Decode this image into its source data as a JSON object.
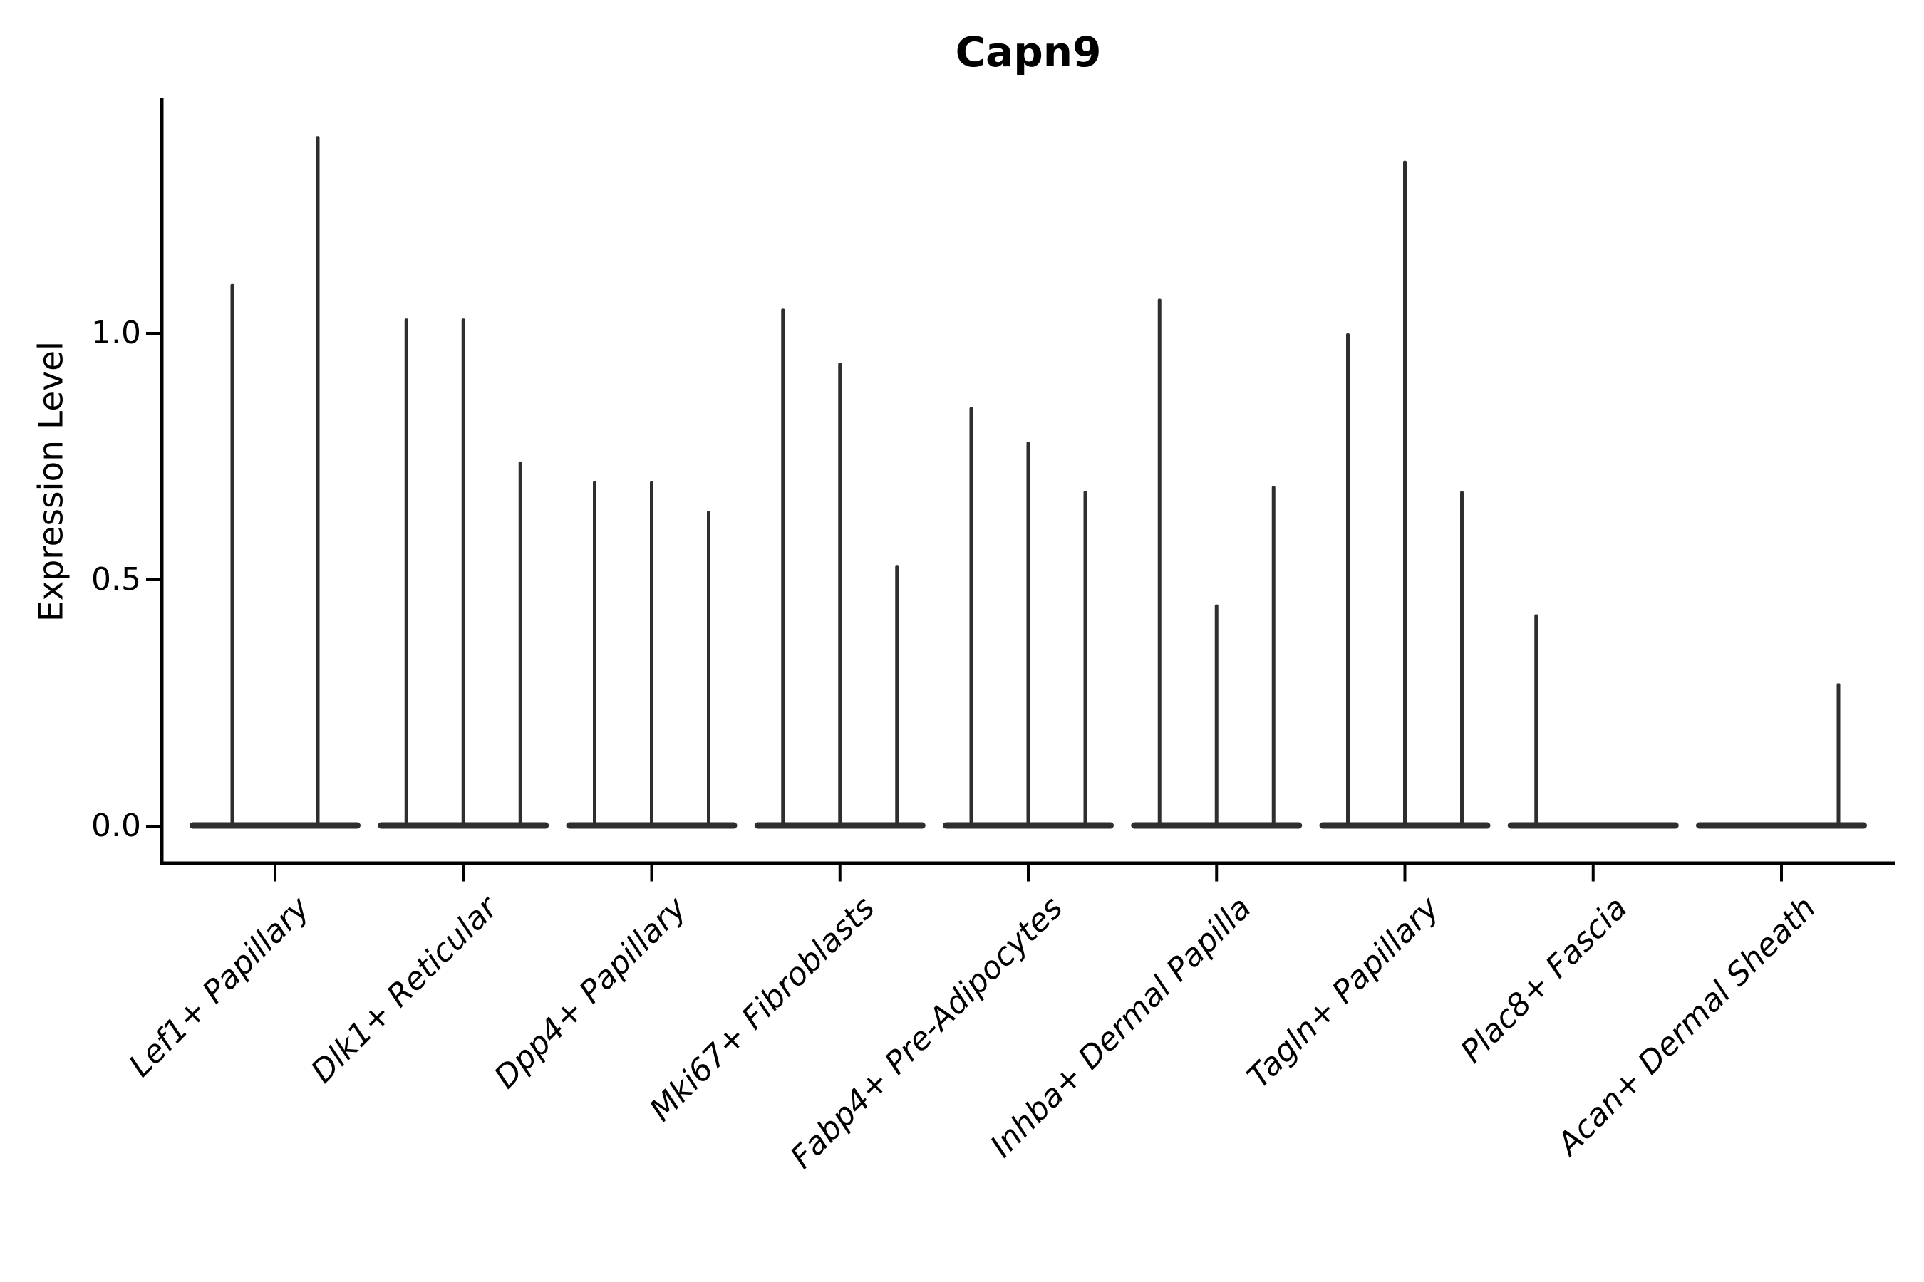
{
  "chart_data": {
    "type": "violin",
    "title": "Capn9",
    "xlabel": "",
    "ylabel": "Expression Level",
    "ylim": [
      -0.07,
      1.47
    ],
    "grid": false,
    "legend": null,
    "violin_color": "#2e2e2e",
    "axis_color": "#000000",
    "yticks": [
      {
        "label": "0.0",
        "value": 0.0
      },
      {
        "label": "0.5",
        "value": 0.5
      },
      {
        "label": "1.0",
        "value": 1.0
      }
    ],
    "categories": [
      {
        "label": "Lef1+ Papillary",
        "violin_peaks": [
          1.1,
          1.4
        ]
      },
      {
        "label": "Dlk1+ Reticular",
        "violin_peaks": [
          1.03,
          1.03,
          0.74
        ]
      },
      {
        "label": "Dpp4+ Papillary",
        "violin_peaks": [
          0.7,
          0.7,
          0.64
        ]
      },
      {
        "label": "Mki67+ Fibroblasts",
        "violin_peaks": [
          1.05,
          0.94,
          0.53
        ]
      },
      {
        "label": "Fabp4+ Pre-Adipocytes",
        "violin_peaks": [
          0.85,
          0.78,
          0.68
        ]
      },
      {
        "label": "Inhba+ Dermal Papilla",
        "violin_peaks": [
          1.07,
          0.45,
          0.69
        ]
      },
      {
        "label": "Tagln+ Papillary",
        "violin_peaks": [
          1.0,
          1.35,
          0.68
        ]
      },
      {
        "label": "Plac8+ Fascia",
        "violin_peaks": [
          0.43,
          0.0,
          0.0
        ]
      },
      {
        "label": "Acan+ Dermal Sheath",
        "violin_peaks": [
          0.0,
          0.0,
          0.29
        ]
      }
    ]
  }
}
